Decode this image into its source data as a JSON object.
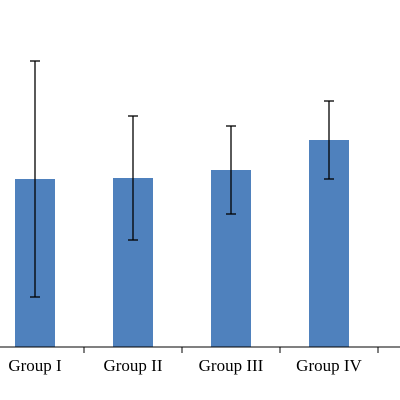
{
  "chart_data": {
    "type": "bar",
    "categories": [
      "Group I",
      "Group II",
      "Group III",
      "Group IV"
    ],
    "values": [
      168,
      169,
      177,
      207
    ],
    "errors": [
      118,
      62,
      44,
      39
    ],
    "color": "#4f81bd",
    "ylim": [
      0,
      347
    ]
  }
}
